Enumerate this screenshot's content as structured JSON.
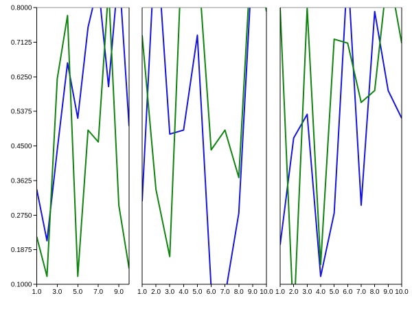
{
  "figure": {
    "background": "#ffffff",
    "axis_color": "#000000",
    "top_border_color": "#919191",
    "tick_label_fontsize": 10
  },
  "chart_data": [
    {
      "type": "line",
      "title": "",
      "xlabel": "",
      "ylabel": "",
      "x": [
        1,
        2,
        3,
        4,
        5,
        6,
        7,
        8,
        9,
        10
      ],
      "xlim": [
        1,
        10
      ],
      "ylim": [
        0.1,
        0.8
      ],
      "grid": false,
      "legend": "none",
      "xticks": [
        1,
        3,
        5,
        7,
        9
      ],
      "xtick_labels": [
        "1.0",
        "3.0",
        "5.0",
        "7.0",
        "9.0"
      ],
      "yticks": [
        0.1,
        0.1875,
        0.275,
        0.3625,
        0.45,
        0.5375,
        0.625,
        0.7125,
        0.8
      ],
      "ytick_labels": [
        "0.1000",
        "0.1875",
        "0.2750",
        "0.3625",
        "0.4500",
        "0.5375",
        "0.6250",
        "0.7125",
        "0.8000"
      ],
      "show_ytick_labels": true,
      "series": [
        {
          "name": "blue",
          "color": "#1414dd",
          "values": [
            0.34,
            0.21,
            0.44,
            0.66,
            0.52,
            0.75,
            0.86,
            0.6,
            0.9,
            0.5
          ]
        },
        {
          "name": "green",
          "color": "#0e840e",
          "values": [
            0.22,
            0.12,
            0.62,
            0.78,
            0.12,
            0.49,
            0.46,
            0.85,
            0.3,
            0.14
          ]
        }
      ]
    },
    {
      "type": "line",
      "title": "",
      "xlabel": "",
      "ylabel": "",
      "x": [
        1,
        2,
        3,
        4,
        5,
        6,
        7,
        8,
        9,
        10
      ],
      "xlim": [
        1,
        10
      ],
      "ylim": [
        0.1,
        0.8
      ],
      "grid": false,
      "legend": "none",
      "xticks": [
        1,
        2,
        3,
        4,
        5,
        6,
        7,
        8,
        9,
        10
      ],
      "xtick_labels": [
        "1.0",
        "2.0",
        "3.0",
        "4.0",
        "5.0",
        "6.0",
        "7.0",
        "8.0",
        "9.0",
        "10.0"
      ],
      "yticks": [
        0.1,
        0.1875,
        0.275,
        0.3625,
        0.45,
        0.5375,
        0.625,
        0.7125,
        0.8
      ],
      "ytick_labels": [],
      "show_ytick_labels": false,
      "series": [
        {
          "name": "blue",
          "color": "#1414dd",
          "values": [
            0.31,
            1.0,
            0.48,
            0.49,
            0.73,
            0.09,
            0.07,
            0.28,
            0.93,
            0.9
          ]
        },
        {
          "name": "green",
          "color": "#0e840e",
          "values": [
            0.73,
            0.34,
            0.17,
            1.05,
            0.94,
            0.44,
            0.49,
            0.37,
            1.0,
            0.79
          ]
        }
      ]
    },
    {
      "type": "line",
      "title": "",
      "xlabel": "",
      "ylabel": "",
      "x": [
        1,
        2,
        3,
        4,
        5,
        6,
        7,
        8,
        9,
        10
      ],
      "xlim": [
        1,
        10
      ],
      "ylim": [
        0.1,
        0.8
      ],
      "grid": false,
      "legend": "none",
      "xticks": [
        1,
        2,
        3,
        4,
        5,
        6,
        7,
        8,
        9,
        10
      ],
      "xtick_labels": [
        "1.0",
        "2.0",
        "3.0",
        "4.0",
        "5.0",
        "6.0",
        "7.0",
        "8.0",
        "9.0",
        "10.0"
      ],
      "yticks": [
        0.1,
        0.1875,
        0.275,
        0.3625,
        0.45,
        0.5375,
        0.625,
        0.7125,
        0.8
      ],
      "ytick_labels": [],
      "show_ytick_labels": false,
      "series": [
        {
          "name": "blue",
          "color": "#1414dd",
          "values": [
            0.2,
            0.47,
            0.53,
            0.12,
            0.28,
            0.9,
            0.3,
            0.79,
            0.59,
            0.52
          ]
        },
        {
          "name": "green",
          "color": "#0e840e",
          "values": [
            0.8,
            0.0,
            0.8,
            0.15,
            0.72,
            0.71,
            0.56,
            0.59,
            0.9,
            0.71
          ]
        }
      ]
    }
  ]
}
